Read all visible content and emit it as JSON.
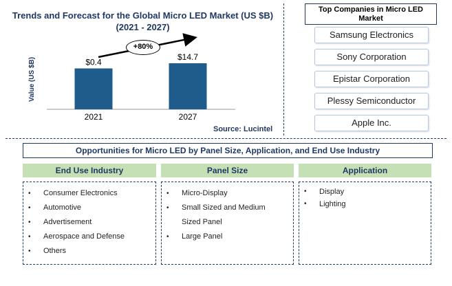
{
  "chart_data": {
    "type": "bar",
    "title": "Trends and Forecast for the Global Micro LED Market (US $B) (2021 - 2027)",
    "categories": [
      "2021",
      "2027"
    ],
    "values": [
      0.4,
      14.7
    ],
    "value_labels": [
      "$0.4",
      "$14.7"
    ],
    "ylabel": "Value (US $B)",
    "xlabel": "",
    "bar_color": "#1f5c8b",
    "growth_label": "+80%",
    "source": "Source: Lucintel",
    "grid": false
  },
  "companies": {
    "title": "Top Companies in Micro LED Market",
    "items": [
      "Samsung Electronics",
      "Sony Corporation",
      "Epistar Corporation",
      "Plessy Semiconductor",
      "Apple Inc."
    ]
  },
  "opportunities": {
    "title": "Opportunities for Micro LED  by Panel Size, Application, and End Use Industry",
    "columns": [
      {
        "header": "End Use Industry",
        "items": [
          "Consumer Electronics",
          "Automotive",
          "Advertisement",
          "Aerospace and Defense",
          "Others"
        ]
      },
      {
        "header": "Panel Size",
        "items": [
          "Micro-Display",
          "Small Sized and Medium",
          "Sized Panel",
          "Large Panel"
        ]
      },
      {
        "header": "Application",
        "items": [
          "Display",
          "Lighting"
        ]
      }
    ]
  },
  "colors": {
    "title": "#1f3864",
    "header_green": "#c5e0b4",
    "bar": "#1f5c8b"
  }
}
